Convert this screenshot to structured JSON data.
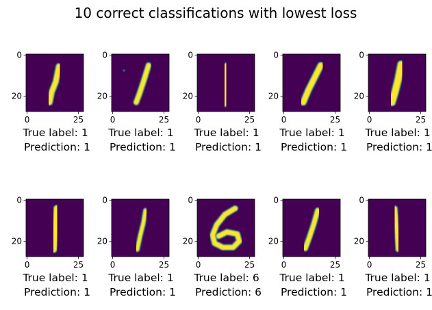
{
  "chart_data": {
    "type": "image-grid",
    "title": "10 correct classifications with lowest loss",
    "grid": {
      "rows": 2,
      "cols": 5
    },
    "image_size": [
      28,
      28
    ],
    "axes": {
      "x_ticks": [
        0,
        25
      ],
      "y_ticks": [
        0,
        20
      ],
      "xlim": [
        -0.5,
        27.5
      ],
      "ylim": [
        27.5,
        -0.5
      ]
    },
    "colormap": {
      "background": "#440154",
      "foreground": "#fde725",
      "mid": "#21918c"
    },
    "label_prefix": "True label: ",
    "prediction_prefix": "Prediction: ",
    "panels": [
      {
        "true_label": "1",
        "prediction": "1",
        "strokes": [
          {
            "points": [
              [
                15.5,
                5.5
              ],
              [
                14,
                13
              ],
              [
                12,
                18
              ],
              [
                11,
                23
              ]
            ],
            "width": 2.3
          }
        ]
      },
      {
        "true_label": "1",
        "prediction": "1",
        "strokes": [
          {
            "points": [
              [
                17.5,
                5
              ],
              [
                15,
                13
              ],
              [
                13,
                19
              ],
              [
                11.5,
                23
              ]
            ],
            "width": 2.1
          }
        ],
        "dot": [
          5.5,
          7.5
        ]
      },
      {
        "true_label": "1",
        "prediction": "1",
        "strokes": [
          {
            "points": [
              [
                13.5,
                5
              ],
              [
                13.2,
                14
              ],
              [
                13,
                24
              ]
            ],
            "width": 1.8
          }
        ]
      },
      {
        "true_label": "1",
        "prediction": "1",
        "strokes": [
          {
            "points": [
              [
                18,
                5
              ],
              [
                15,
                11
              ],
              [
                12,
                17
              ],
              [
                9.5,
                23
              ]
            ],
            "width": 2.5
          }
        ]
      },
      {
        "true_label": "1",
        "prediction": "1",
        "strokes": [
          {
            "points": [
              [
                15.5,
                4.5
              ],
              [
                14,
                12
              ],
              [
                12.5,
                18
              ],
              [
                11,
                23
              ]
            ],
            "width": 3.0
          }
        ]
      },
      {
        "true_label": "1",
        "prediction": "1",
        "strokes": [
          {
            "points": [
              [
                14.5,
                4
              ],
              [
                14,
                12
              ],
              [
                13.5,
                18
              ],
              [
                13,
                24
              ]
            ],
            "width": 2.6
          }
        ]
      },
      {
        "true_label": "1",
        "prediction": "1",
        "strokes": [
          {
            "points": [
              [
                16,
                5
              ],
              [
                15,
                11
              ],
              [
                13.5,
                17
              ],
              [
                12,
                24
              ]
            ],
            "width": 1.6
          }
        ]
      },
      {
        "true_label": "6",
        "prediction": "6",
        "strokes": [
          {
            "points": [
              [
                18,
                4
              ],
              [
                13,
                7
              ],
              [
                9,
                12
              ],
              [
                7,
                17
              ],
              [
                8,
                21
              ],
              [
                12,
                23
              ],
              [
                17,
                23
              ],
              [
                20,
                20
              ],
              [
                19,
                16.5
              ],
              [
                14,
                15.5
              ],
              [
                10,
                17.5
              ]
            ],
            "width": 2.1
          }
        ]
      },
      {
        "true_label": "1",
        "prediction": "1",
        "strokes": [
          {
            "points": [
              [
                16.5,
                5
              ],
              [
                14.5,
                12
              ],
              [
                12.5,
                18
              ],
              [
                10.5,
                23.5
              ]
            ],
            "width": 2.0
          }
        ]
      },
      {
        "true_label": "1",
        "prediction": "1",
        "strokes": [
          {
            "points": [
              [
                12.5,
                4
              ],
              [
                13,
                10
              ],
              [
                13.5,
                17
              ],
              [
                14,
                24
              ]
            ],
            "width": 1.8
          }
        ]
      }
    ]
  }
}
